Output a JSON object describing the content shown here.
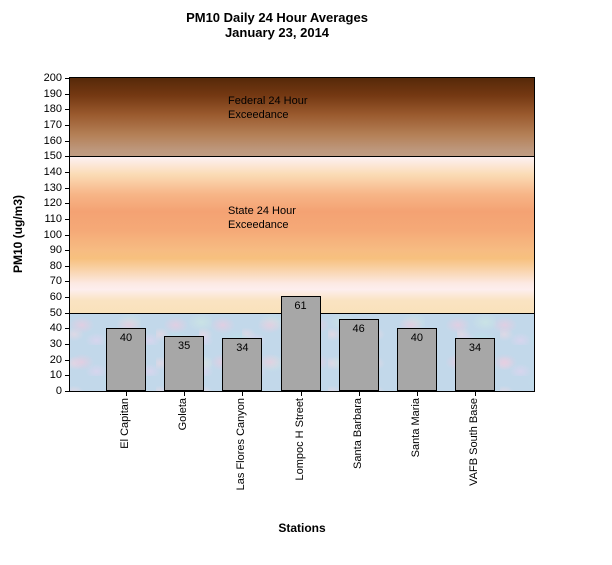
{
  "title": {
    "line1": "PM10 Daily 24 Hour Averages",
    "line2": "January 23, 2014"
  },
  "chart_data": {
    "type": "bar",
    "title": "PM10 Daily 24 Hour Averages",
    "subtitle": "January 23, 2014",
    "xlabel": "Stations",
    "ylabel": "PM10 (ug/m3)",
    "ylim": [
      0,
      200
    ],
    "yticks": [
      0,
      10,
      20,
      30,
      40,
      50,
      60,
      70,
      80,
      90,
      100,
      110,
      120,
      130,
      140,
      150,
      160,
      170,
      180,
      190,
      200
    ],
    "categories": [
      "El Capitan",
      "Goleta",
      "Las Flores Canyon",
      "Lompoc H Street",
      "Santa Barbara",
      "Santa Maria",
      "VAFB South Base"
    ],
    "values": [
      40,
      35,
      34,
      61,
      46,
      40,
      34
    ],
    "bar_color": "#a7a7a7",
    "bar_border_color": "#000000",
    "grid": false,
    "legend": "none",
    "zones": [
      {
        "name": "federal-24-hour-exceedance",
        "from": 150,
        "to": 200,
        "label_lines": [
          "Federal 24 Hour",
          "Exceedance"
        ],
        "colors": [
          "#562909",
          "#9a5a2e",
          "#c09c82"
        ]
      },
      {
        "name": "state-24-hour-exceedance",
        "from": 50,
        "to": 150,
        "label_lines": [
          "State 24 Hour",
          "Exceedance"
        ],
        "colors": [
          "#fdf1f3",
          "#f4a273",
          "#f9e2bb"
        ]
      },
      {
        "name": "below-state-standard",
        "from": 0,
        "to": 50,
        "label_lines": [],
        "colors": [
          "#c2d8ea"
        ]
      }
    ]
  }
}
